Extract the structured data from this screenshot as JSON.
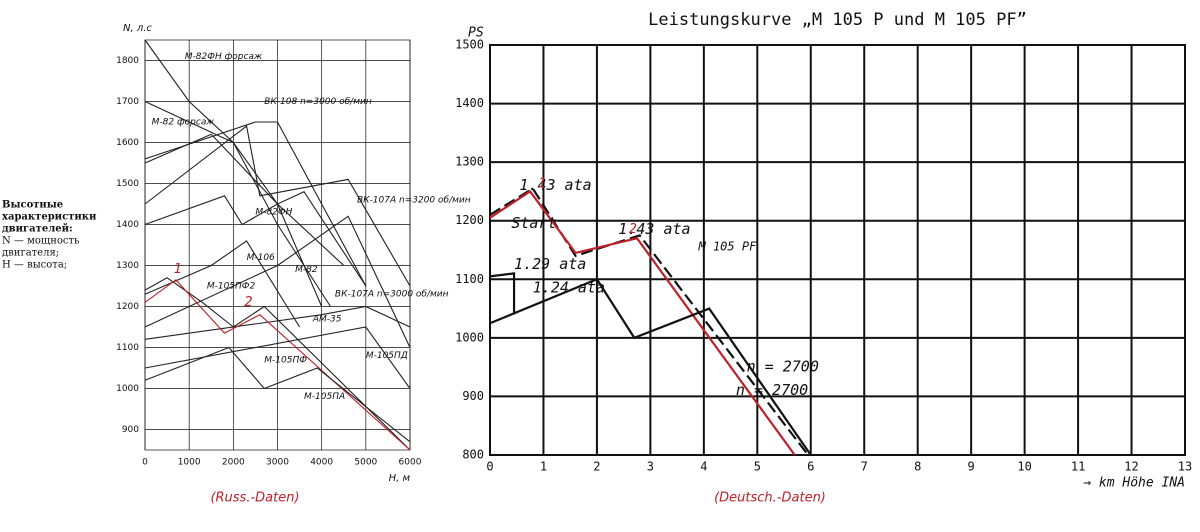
{
  "notes": [
    "Высотные",
    "характеристики",
    "двигателей:",
    "N — мощность",
    "двигателя;",
    "H — высота;"
  ],
  "captions": [
    "(Russ.-Daten)",
    "(Deutsch.-Daten)"
  ],
  "chart_data": [
    {
      "type": "line",
      "xlabel": "H, м",
      "ylabel": "N, л.с",
      "xlim": [
        0,
        6000
      ],
      "xticks": [
        0,
        1000,
        2000,
        3000,
        4000,
        5000,
        6000
      ],
      "ylim": [
        850,
        1850
      ],
      "yticks": [
        900,
        1000,
        1100,
        1200,
        1300,
        1400,
        1500,
        1600,
        1700,
        1800
      ],
      "grid": true,
      "series": [
        {
          "name": "М-82ФН форсаж",
          "color": "#222222",
          "x": [
            0,
            1000,
            2000,
            3000,
            4500
          ],
          "values": [
            1850,
            1700,
            1600,
            1450,
            1300
          ]
        },
        {
          "name": "М-82 форсаж",
          "color": "#222222",
          "x": [
            0,
            1000,
            2000,
            3000,
            4200
          ],
          "values": [
            1700,
            1650,
            1600,
            1400,
            1200
          ]
        },
        {
          "name": "ВК-108 n=3000 об/мин",
          "color": "#222222",
          "x": [
            0,
            2500,
            3000,
            5000
          ],
          "values": [
            1560,
            1650,
            1650,
            1250
          ]
        },
        {
          "name": "ВК-107А n=3200 об/мин",
          "color": "#222222",
          "x": [
            0,
            2300,
            2600,
            4600,
            6000
          ],
          "values": [
            1450,
            1640,
            1470,
            1510,
            1250
          ]
        },
        {
          "name": "М-82ФН",
          "color": "#222222",
          "x": [
            0,
            1500,
            3000,
            3600,
            5000
          ],
          "values": [
            1550,
            1620,
            1450,
            1480,
            1250
          ]
        },
        {
          "name": "М-106",
          "color": "#222222",
          "x": [
            0,
            1500,
            2300,
            3500
          ],
          "values": [
            1230,
            1300,
            1360,
            1150
          ]
        },
        {
          "name": "М-82",
          "color": "#222222",
          "x": [
            0,
            1800,
            2200,
            3000,
            4000
          ],
          "values": [
            1400,
            1470,
            1400,
            1450,
            1200
          ]
        },
        {
          "name": "ВК-107А n=3000 об/мин",
          "color": "#222222",
          "x": [
            0,
            3000,
            4600,
            6000
          ],
          "values": [
            1150,
            1300,
            1420,
            1100
          ]
        },
        {
          "name": "АМ-35",
          "color": "#222222",
          "x": [
            0,
            4000,
            5000,
            6000
          ],
          "values": [
            1120,
            1180,
            1200,
            1150
          ]
        },
        {
          "name": "М-105ПФ2",
          "color": "#222222",
          "x": [
            0,
            500,
            1300,
            2000,
            2700,
            6000
          ],
          "values": [
            1240,
            1270,
            1210,
            1150,
            1200,
            850
          ]
        },
        {
          "name": "М-105ПФ",
          "color": "#c0202a",
          "x": [
            0,
            700,
            1800,
            2600,
            6000
          ],
          "values": [
            1210,
            1265,
            1135,
            1180,
            850
          ]
        },
        {
          "name": "М-105ПД",
          "color": "#222222",
          "x": [
            0,
            5000,
            6000
          ],
          "values": [
            1050,
            1150,
            1000
          ]
        },
        {
          "name": "М-105ПА",
          "color": "#222222",
          "x": [
            0,
            1900,
            2700,
            3900,
            6000
          ],
          "values": [
            1020,
            1100,
            1000,
            1050,
            870
          ]
        }
      ],
      "annotations": [
        "1",
        "2"
      ]
    },
    {
      "type": "line",
      "title": "Leistungskurve „M 105 P und M 105 PF”",
      "xlabel": "→ km Höhe INA",
      "ylabel": "PS",
      "xlim": [
        0,
        13
      ],
      "xticks": [
        0,
        1,
        2,
        3,
        4,
        5,
        6,
        7,
        8,
        9,
        10,
        11,
        12,
        13
      ],
      "ylim": [
        800,
        1500
      ],
      "yticks": [
        800,
        900,
        1000,
        1100,
        1200,
        1300,
        1400,
        1500
      ],
      "grid": true,
      "series": [
        {
          "name": "M 105 PF",
          "color": "#111111",
          "dashed": true,
          "x": [
            0,
            0.8,
            1.6,
            2.8,
            5.95
          ],
          "values": [
            1210,
            1255,
            1140,
            1175,
            800
          ]
        },
        {
          "color": "#c0202a",
          "x": [
            0,
            0.75,
            1.6,
            2.75,
            5.7
          ],
          "values": [
            1205,
            1250,
            1145,
            1170,
            800
          ]
        },
        {
          "name": "M 105 P",
          "color": "#111111",
          "x": [
            0,
            2,
            2.7,
            4.1,
            6
          ],
          "values": [
            1025,
            1100,
            1000,
            1050,
            800
          ]
        },
        {
          "color": "#111111",
          "x": [
            0,
            0.45,
            0.45
          ],
          "values": [
            1105,
            1110,
            1040
          ]
        }
      ],
      "annotations": [
        "1.43 ata",
        "Start",
        "1.29 ata",
        "1.24 ata",
        "1.43 ata",
        "n = 2700",
        "n = 2700",
        "1",
        "2"
      ]
    }
  ]
}
